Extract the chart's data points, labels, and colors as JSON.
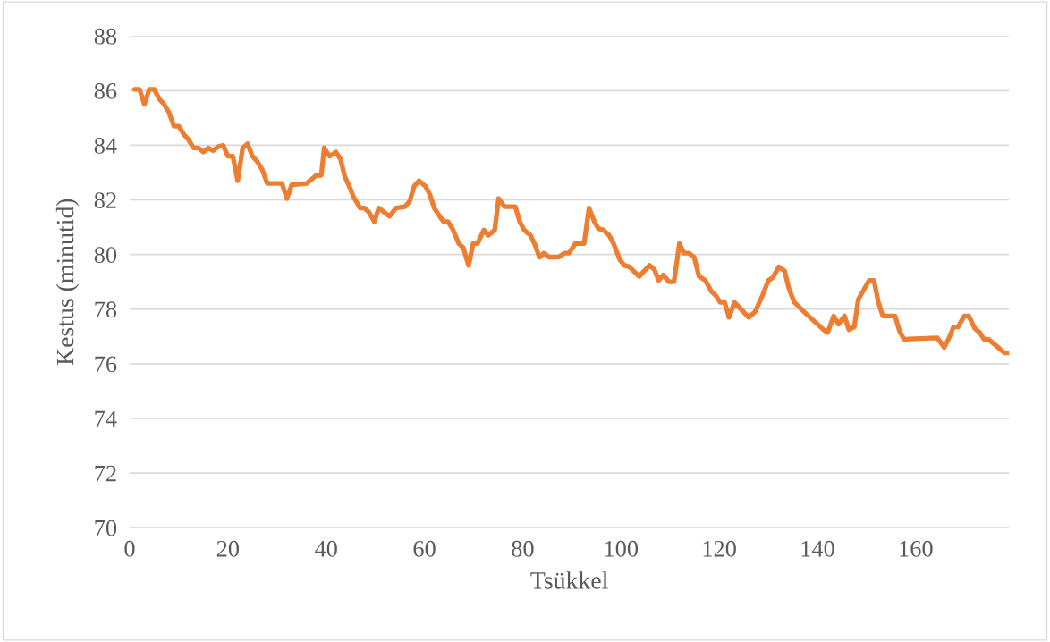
{
  "chart_data": {
    "type": "line",
    "xlabel": "Tsükkel",
    "ylabel": "Kestus (minutid)",
    "xlim": [
      0,
      179
    ],
    "xticks": [
      0,
      20,
      40,
      60,
      80,
      100,
      120,
      140,
      160
    ],
    "ylim": [
      70,
      88
    ],
    "yticks": [
      70,
      72,
      74,
      76,
      78,
      80,
      82,
      84,
      86,
      88
    ],
    "grid": "y",
    "marker": "none",
    "line_style": "solid",
    "series": [
      {
        "color": "#ed7d31",
        "x": [
          1,
          2,
          3,
          4,
          5,
          6,
          7,
          8,
          9,
          10,
          11,
          12,
          13,
          14,
          15,
          16,
          17,
          18,
          19,
          20,
          21,
          22,
          23,
          24,
          25,
          26,
          27,
          28,
          31,
          32,
          33,
          36,
          38,
          39,
          39.6,
          40.7,
          42,
          42.9,
          43.8,
          44.7,
          45.6,
          46.9,
          47.8,
          48.7,
          49.8,
          50.7,
          52.9,
          54.2,
          56,
          57,
          57.9,
          58.9,
          60.2,
          61.1,
          62,
          63.3,
          63.9,
          64.8,
          65.7,
          67,
          67.9,
          69,
          69.9,
          70.8,
          72.1,
          73,
          74.3,
          75.1,
          76.3,
          78.5,
          79.4,
          80.3,
          81.6,
          82.5,
          83.4,
          84.3,
          85.4,
          87.3,
          88.5,
          89.4,
          90.7,
          92.5,
          93.5,
          94.6,
          95.4,
          96.4,
          97.6,
          98.5,
          99.8,
          100.7,
          101.7,
          103.7,
          105.8,
          106.8,
          107.7,
          108.6,
          109.8,
          110.8,
          111.9,
          112.8,
          113.8,
          114.9,
          115.9,
          117.2,
          118.4,
          119.3,
          120.2,
          121.1,
          122,
          123.1,
          126,
          127.3,
          128.8,
          130,
          130.9,
          132.1,
          133.3,
          134.2,
          135.3,
          137.3,
          141.2,
          142.1,
          143.3,
          144.3,
          145.5,
          146.4,
          147.5,
          148.3,
          150.5,
          151.5,
          152.4,
          153.3,
          155.8,
          156.7,
          157.6,
          164.4,
          165.8,
          166.8,
          167.7,
          168.6,
          169.9,
          170.8,
          172,
          173,
          173.9,
          174.8,
          178.1,
          179
        ],
        "values": [
          86.05,
          86.05,
          85.5,
          86.05,
          86.05,
          85.7,
          85.5,
          85.2,
          84.7,
          84.7,
          84.4,
          84.2,
          83.9,
          83.9,
          83.75,
          83.9,
          83.8,
          83.95,
          84.0,
          83.6,
          83.6,
          82.7,
          83.9,
          84.05,
          83.6,
          83.4,
          83.1,
          82.6,
          82.6,
          82.05,
          82.55,
          82.6,
          82.9,
          82.9,
          83.9,
          83.6,
          83.75,
          83.5,
          82.85,
          82.5,
          82.1,
          81.7,
          81.7,
          81.55,
          81.2,
          81.7,
          81.4,
          81.7,
          81.75,
          81.95,
          82.5,
          82.7,
          82.5,
          82.2,
          81.7,
          81.35,
          81.2,
          81.2,
          80.95,
          80.4,
          80.25,
          79.6,
          80.4,
          80.4,
          80.9,
          80.7,
          80.9,
          82.05,
          81.75,
          81.75,
          81.2,
          80.9,
          80.7,
          80.35,
          79.9,
          80.05,
          79.9,
          79.9,
          80.05,
          80.05,
          80.4,
          80.4,
          81.7,
          81.2,
          80.95,
          80.9,
          80.7,
          80.4,
          79.8,
          79.6,
          79.55,
          79.2,
          79.6,
          79.45,
          79.05,
          79.25,
          79.0,
          79.0,
          80.4,
          80.05,
          80.05,
          79.9,
          79.2,
          79.05,
          78.65,
          78.5,
          78.25,
          78.25,
          77.7,
          78.25,
          77.7,
          77.9,
          78.5,
          79.05,
          79.15,
          79.55,
          79.4,
          78.75,
          78.25,
          77.9,
          77.25,
          77.15,
          77.75,
          77.45,
          77.75,
          77.25,
          77.35,
          78.35,
          79.05,
          79.05,
          78.25,
          77.75,
          77.75,
          77.2,
          76.9,
          76.95,
          76.6,
          76.95,
          77.35,
          77.35,
          77.75,
          77.75,
          77.3,
          77.15,
          76.9,
          76.9,
          76.4,
          76.4
        ]
      }
    ]
  }
}
